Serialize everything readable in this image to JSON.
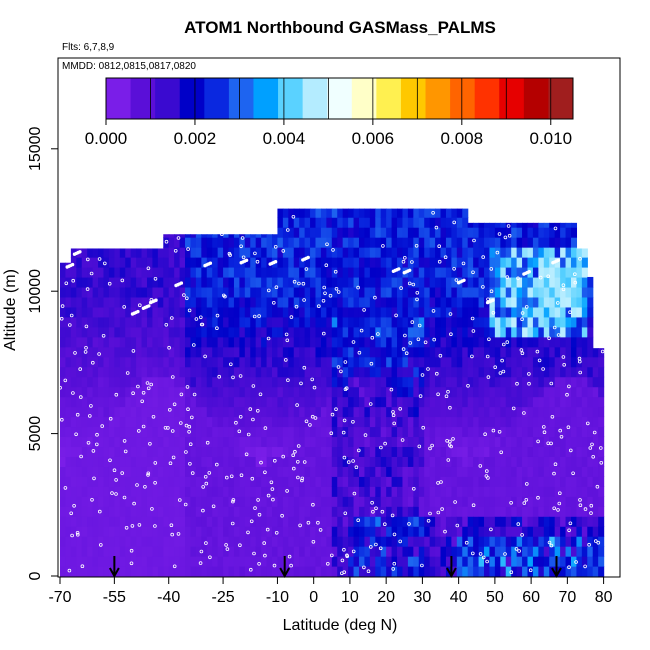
{
  "chart_data": {
    "type": "heatmap",
    "title": "ATOM1 Northbound GASMass_PALMS",
    "flights_label": "Flts: 6,7,8,9",
    "dates_label": "MMDD: 0812,0815,0817,0820",
    "xlabel": "Latitude (deg N)",
    "ylabel": "Altitude (m)",
    "xlim": [
      -70,
      80
    ],
    "ylim": [
      0,
      17500
    ],
    "x_ticks": [
      -70,
      -55,
      -40,
      -25,
      -10,
      0,
      10,
      20,
      30,
      40,
      50,
      60,
      70,
      80
    ],
    "x_tick_labels": [
      "-70",
      "-55",
      "-40",
      "-25",
      "-10",
      "0",
      "10",
      "20",
      "30",
      "40",
      "50",
      "60",
      "70",
      "80"
    ],
    "y_ticks": [
      0,
      5000,
      10000,
      15000
    ],
    "y_tick_labels": [
      "0",
      "5000",
      "10000",
      "15000"
    ],
    "colorbar": {
      "min": 0.0,
      "max": 0.0105,
      "ticks": [
        0.0,
        0.002,
        0.004,
        0.006,
        0.008,
        0.01
      ],
      "tick_labels": [
        "0.000",
        "0.002",
        "0.004",
        "0.006",
        "0.008",
        "0.010"
      ],
      "colors": [
        "#7a1ee8",
        "#5a0fd8",
        "#3a0ad0",
        "#0000c8",
        "#0a28e0",
        "#1e64f0",
        "#00a0ff",
        "#5ad2ff",
        "#b4ecff",
        "#f0ffff",
        "#ffffc8",
        "#fff050",
        "#ffc800",
        "#ff9600",
        "#ff6400",
        "#ff3200",
        "#e60000",
        "#b40000",
        "#a01e1e"
      ]
    },
    "profile_latitudes": [
      -55,
      -8,
      38,
      67
    ],
    "data_region": {
      "lat_range": [
        -70,
        80
      ],
      "max_altitude_by_lat": [
        [
          -70,
          11000
        ],
        [
          -67,
          11500
        ],
        [
          -42,
          12000
        ],
        [
          -15,
          12000
        ],
        [
          -10,
          12900
        ],
        [
          40,
          12900
        ],
        [
          42,
          12400
        ],
        [
          72,
          12400
        ],
        [
          73,
          11500
        ],
        [
          76,
          10500
        ],
        [
          77,
          8000
        ],
        [
          80,
          8000
        ]
      ],
      "background_value": 0.0003,
      "upper_enhancement_value": 0.0022,
      "peak_value": 0.0048
    },
    "grid": false,
    "legend": "colorbar top"
  }
}
